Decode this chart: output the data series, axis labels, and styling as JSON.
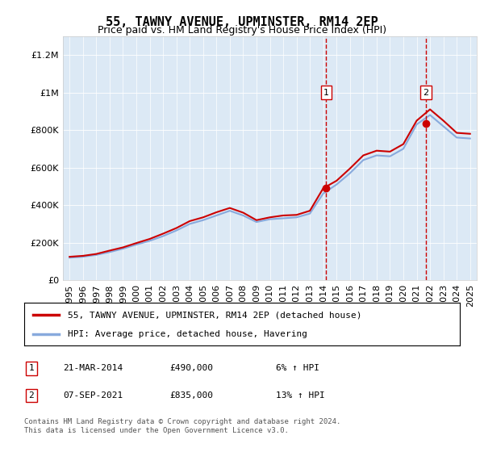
{
  "title": "55, TAWNY AVENUE, UPMINSTER, RM14 2EP",
  "subtitle": "Price paid vs. HM Land Registry's House Price Index (HPI)",
  "background_color": "#dce9f5",
  "plot_bg": "#dce9f5",
  "legend_line1": "55, TAWNY AVENUE, UPMINSTER, RM14 2EP (detached house)",
  "legend_line2": "HPI: Average price, detached house, Havering",
  "footer": "Contains HM Land Registry data © Crown copyright and database right 2024.\nThis data is licensed under the Open Government Licence v3.0.",
  "transaction1_label": "1",
  "transaction1_date": "21-MAR-2014",
  "transaction1_price": "£490,000",
  "transaction1_hpi": "6% ↑ HPI",
  "transaction1_year": 2014.22,
  "transaction1_value": 490000,
  "transaction2_label": "2",
  "transaction2_date": "07-SEP-2021",
  "transaction2_price": "£835,000",
  "transaction2_hpi": "13% ↑ HPI",
  "transaction2_year": 2021.69,
  "transaction2_value": 835000,
  "ylim": [
    0,
    1300000
  ],
  "xlim_start": 1995,
  "xlim_end": 2025.5,
  "red_color": "#cc0000",
  "blue_color": "#6699cc",
  "red_line_color": "#cc0000",
  "blue_line_color": "#88aadd",
  "years": [
    1995,
    1996,
    1997,
    1998,
    1999,
    2000,
    2001,
    2002,
    2003,
    2004,
    2005,
    2006,
    2007,
    2008,
    2009,
    2010,
    2011,
    2012,
    2013,
    2014,
    2015,
    2016,
    2017,
    2018,
    2019,
    2020,
    2021,
    2022,
    2023,
    2024,
    2025
  ],
  "hpi_values": [
    120000,
    125000,
    135000,
    150000,
    168000,
    190000,
    210000,
    235000,
    265000,
    300000,
    320000,
    345000,
    370000,
    345000,
    310000,
    325000,
    330000,
    335000,
    355000,
    462000,
    510000,
    570000,
    640000,
    665000,
    660000,
    700000,
    830000,
    880000,
    820000,
    760000,
    755000
  ],
  "price_values": [
    125000,
    130000,
    140000,
    158000,
    175000,
    198000,
    220000,
    248000,
    278000,
    315000,
    335000,
    362000,
    385000,
    360000,
    320000,
    335000,
    345000,
    348000,
    370000,
    490000,
    530000,
    595000,
    665000,
    690000,
    685000,
    725000,
    850000,
    910000,
    850000,
    785000,
    780000
  ]
}
